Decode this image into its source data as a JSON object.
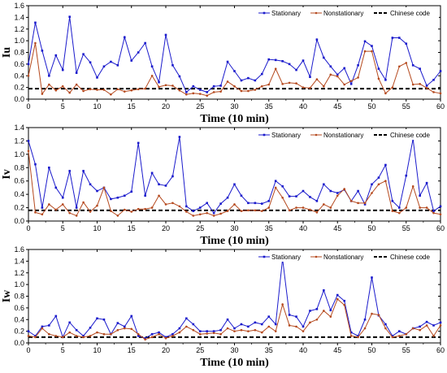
{
  "chart_data": [
    {
      "type": "line",
      "title": "",
      "xlabel": "Time (10 min)",
      "ylabel": "Iu",
      "xlim": [
        0,
        60
      ],
      "ylim": [
        0,
        1.6
      ],
      "xticks": [
        0,
        5,
        10,
        15,
        20,
        25,
        30,
        35,
        40,
        45,
        50,
        55,
        60
      ],
      "yticks": [
        "0.0",
        "0.2",
        "0.4",
        "0.6",
        "0.8",
        "1.0",
        "1.2",
        "1.4",
        "1.6"
      ],
      "legend_position": "top-right",
      "reference_line": {
        "name": "Chinese code",
        "value": 0.18,
        "color": "#000000"
      },
      "series": [
        {
          "name": "Stationary",
          "color": "#1a1acc",
          "values": [
            0.6,
            1.31,
            0.83,
            0.4,
            0.75,
            0.5,
            1.41,
            0.45,
            0.77,
            0.63,
            0.37,
            0.56,
            0.64,
            0.58,
            1.06,
            0.66,
            0.8,
            0.96,
            0.56,
            0.29,
            1.1,
            0.58,
            0.39,
            0.12,
            0.22,
            0.16,
            0.12,
            0.22,
            0.23,
            0.64,
            0.48,
            0.32,
            0.36,
            0.32,
            0.43,
            0.68,
            0.67,
            0.65,
            0.6,
            0.5,
            0.66,
            0.38,
            1.02,
            0.71,
            0.56,
            0.42,
            0.53,
            0.26,
            0.58,
            0.99,
            0.91,
            0.52,
            0.33,
            1.05,
            1.05,
            0.95,
            0.58,
            0.52,
            0.23,
            0.33,
            0.48
          ]
        },
        {
          "name": "Nonstationary",
          "color": "#b5491e",
          "values": [
            0.4,
            0.96,
            0.09,
            0.25,
            0.15,
            0.22,
            0.11,
            0.25,
            0.14,
            0.17,
            0.16,
            0.16,
            0.08,
            0.17,
            0.13,
            0.15,
            0.17,
            0.18,
            0.4,
            0.21,
            0.24,
            0.23,
            0.15,
            0.08,
            0.1,
            0.09,
            0.06,
            0.12,
            0.13,
            0.3,
            0.22,
            0.14,
            0.14,
            0.16,
            0.22,
            0.25,
            0.52,
            0.26,
            0.28,
            0.27,
            0.2,
            0.19,
            0.34,
            0.22,
            0.42,
            0.39,
            0.25,
            0.31,
            0.37,
            0.82,
            0.82,
            0.35,
            0.1,
            0.2,
            0.56,
            0.62,
            0.25,
            0.26,
            0.19,
            0.12,
            0.1
          ]
        }
      ]
    },
    {
      "type": "line",
      "title": "",
      "xlabel": "Time (10 min)",
      "ylabel": "Iv",
      "xlim": [
        0,
        60
      ],
      "ylim": [
        0,
        1.4
      ],
      "xticks": [
        0,
        5,
        10,
        15,
        20,
        25,
        30,
        35,
        40,
        45,
        50,
        55,
        60
      ],
      "yticks": [
        "0.0",
        "0.2",
        "0.4",
        "0.6",
        "0.8",
        "1.0",
        "1.2",
        "1.4"
      ],
      "legend_position": "top-right",
      "reference_line": {
        "name": "Chinese code",
        "value": 0.16,
        "color": "#000000"
      },
      "series": [
        {
          "name": "Stationary",
          "color": "#1a1acc",
          "values": [
            1.2,
            0.85,
            0.2,
            0.8,
            0.5,
            0.35,
            0.75,
            0.2,
            0.75,
            0.55,
            0.45,
            0.5,
            0.33,
            0.35,
            0.38,
            0.44,
            1.17,
            0.38,
            0.72,
            0.55,
            0.53,
            0.67,
            1.26,
            0.22,
            0.15,
            0.2,
            0.27,
            0.12,
            0.26,
            0.35,
            0.55,
            0.38,
            0.27,
            0.27,
            0.26,
            0.3,
            0.6,
            0.52,
            0.37,
            0.37,
            0.45,
            0.36,
            0.3,
            0.55,
            0.45,
            0.42,
            0.47,
            0.3,
            0.45,
            0.25,
            0.55,
            0.65,
            0.84,
            0.3,
            0.2,
            0.68,
            1.23,
            0.38,
            0.57,
            0.15,
            0.22
          ]
        },
        {
          "name": "Nonstationary",
          "color": "#b5491e",
          "values": [
            1.05,
            0.13,
            0.1,
            0.25,
            0.17,
            0.25,
            0.12,
            0.08,
            0.28,
            0.14,
            0.23,
            0.5,
            0.15,
            0.08,
            0.17,
            0.14,
            0.18,
            0.18,
            0.2,
            0.38,
            0.25,
            0.27,
            0.22,
            0.14,
            0.08,
            0.1,
            0.12,
            0.08,
            0.11,
            0.15,
            0.25,
            0.15,
            0.16,
            0.16,
            0.15,
            0.2,
            0.5,
            0.35,
            0.16,
            0.2,
            0.2,
            0.17,
            0.13,
            0.25,
            0.2,
            0.38,
            0.48,
            0.3,
            0.27,
            0.27,
            0.42,
            0.55,
            0.6,
            0.15,
            0.12,
            0.2,
            0.52,
            0.2,
            0.2,
            0.12,
            0.1
          ]
        }
      ]
    },
    {
      "type": "line",
      "title": "",
      "xlabel": "Time (10 min)",
      "ylabel": "Iw",
      "xlim": [
        0,
        60
      ],
      "ylim": [
        0,
        1.6
      ],
      "xticks": [
        0,
        5,
        10,
        15,
        20,
        25,
        30,
        35,
        40,
        45,
        50,
        55,
        60
      ],
      "yticks": [
        "0.0",
        "0.2",
        "0.4",
        "0.6",
        "0.8",
        "1.0",
        "1.2",
        "1.4",
        "1.6"
      ],
      "legend_position": "top-right",
      "reference_line": {
        "name": "Chinese code",
        "value": 0.1,
        "color": "#000000"
      },
      "series": [
        {
          "name": "Stationary",
          "color": "#1a1acc",
          "values": [
            0.2,
            0.12,
            0.28,
            0.3,
            0.46,
            0.1,
            0.35,
            0.22,
            0.12,
            0.26,
            0.42,
            0.4,
            0.15,
            0.34,
            0.28,
            0.46,
            0.12,
            0.08,
            0.15,
            0.18,
            0.1,
            0.15,
            0.25,
            0.42,
            0.32,
            0.2,
            0.2,
            0.2,
            0.22,
            0.4,
            0.25,
            0.32,
            0.28,
            0.35,
            0.32,
            0.45,
            0.32,
            1.44,
            0.48,
            0.45,
            0.28,
            0.55,
            0.58,
            0.9,
            0.56,
            0.82,
            0.72,
            0.18,
            0.12,
            0.4,
            1.12,
            0.47,
            0.32,
            0.12,
            0.2,
            0.15,
            0.25,
            0.28,
            0.36,
            0.3,
            0.35
          ]
        },
        {
          "name": "Nonstationary",
          "color": "#b5491e",
          "values": [
            0.12,
            0.1,
            0.25,
            0.15,
            0.12,
            0.1,
            0.18,
            0.12,
            0.1,
            0.12,
            0.18,
            0.15,
            0.15,
            0.22,
            0.25,
            0.24,
            0.15,
            0.06,
            0.1,
            0.15,
            0.08,
            0.12,
            0.18,
            0.28,
            0.22,
            0.15,
            0.16,
            0.17,
            0.15,
            0.25,
            0.2,
            0.22,
            0.2,
            0.22,
            0.18,
            0.28,
            0.2,
            0.66,
            0.3,
            0.28,
            0.2,
            0.35,
            0.4,
            0.55,
            0.45,
            0.75,
            0.65,
            0.12,
            0.1,
            0.25,
            0.5,
            0.48,
            0.25,
            0.1,
            0.12,
            0.15,
            0.25,
            0.22,
            0.3,
            0.12,
            0.3
          ]
        }
      ]
    }
  ]
}
